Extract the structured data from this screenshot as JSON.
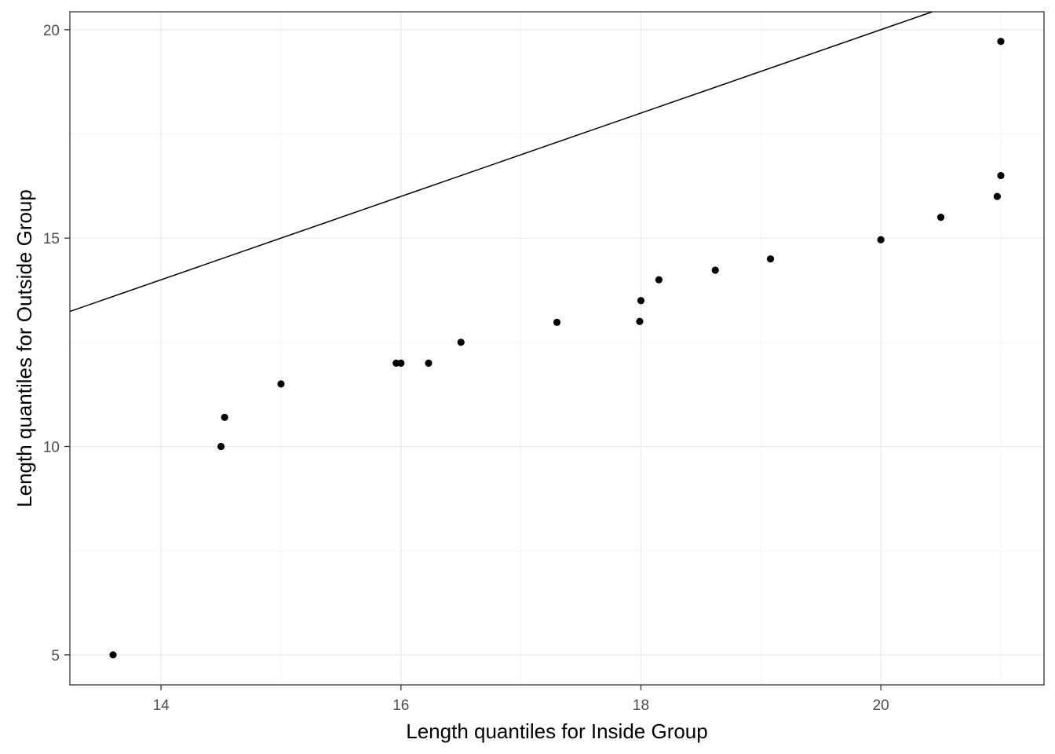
{
  "chart_data": {
    "type": "scatter",
    "xlabel": "Length quantiles for Inside Group",
    "ylabel": "Length quantiles for Outside Group",
    "xlim": [
      13.24,
      21.36
    ],
    "ylim": [
      4.28,
      20.43
    ],
    "x_ticks": [
      14,
      16,
      18,
      20
    ],
    "y_ticks": [
      5,
      10,
      15,
      20
    ],
    "grid": true,
    "reference_line": {
      "intercept": 0,
      "slope": 1
    },
    "series": [
      {
        "points": [
          {
            "x": 13.6,
            "y": 5.0
          },
          {
            "x": 14.5,
            "y": 10.0
          },
          {
            "x": 14.53,
            "y": 10.7
          },
          {
            "x": 15.0,
            "y": 11.5
          },
          {
            "x": 15.96,
            "y": 12.0
          },
          {
            "x": 16.0,
            "y": 12.0
          },
          {
            "x": 16.23,
            "y": 12.0
          },
          {
            "x": 16.5,
            "y": 12.5
          },
          {
            "x": 17.3,
            "y": 12.98
          },
          {
            "x": 17.99,
            "y": 13.0
          },
          {
            "x": 18.0,
            "y": 13.5
          },
          {
            "x": 18.15,
            "y": 14.0
          },
          {
            "x": 18.62,
            "y": 14.23
          },
          {
            "x": 19.08,
            "y": 14.5
          },
          {
            "x": 20.0,
            "y": 14.96
          },
          {
            "x": 20.5,
            "y": 15.5
          },
          {
            "x": 20.97,
            "y": 16.0
          },
          {
            "x": 21.0,
            "y": 16.5
          },
          {
            "x": 21.0,
            "y": 19.72
          }
        ]
      }
    ]
  },
  "colors": {
    "point": "#000000",
    "line": "#000000",
    "grid_major": "#ebebeb",
    "grid_minor": "#f5f5f5",
    "panel_border": "#333333",
    "tick_label": "#4d4d4d"
  }
}
